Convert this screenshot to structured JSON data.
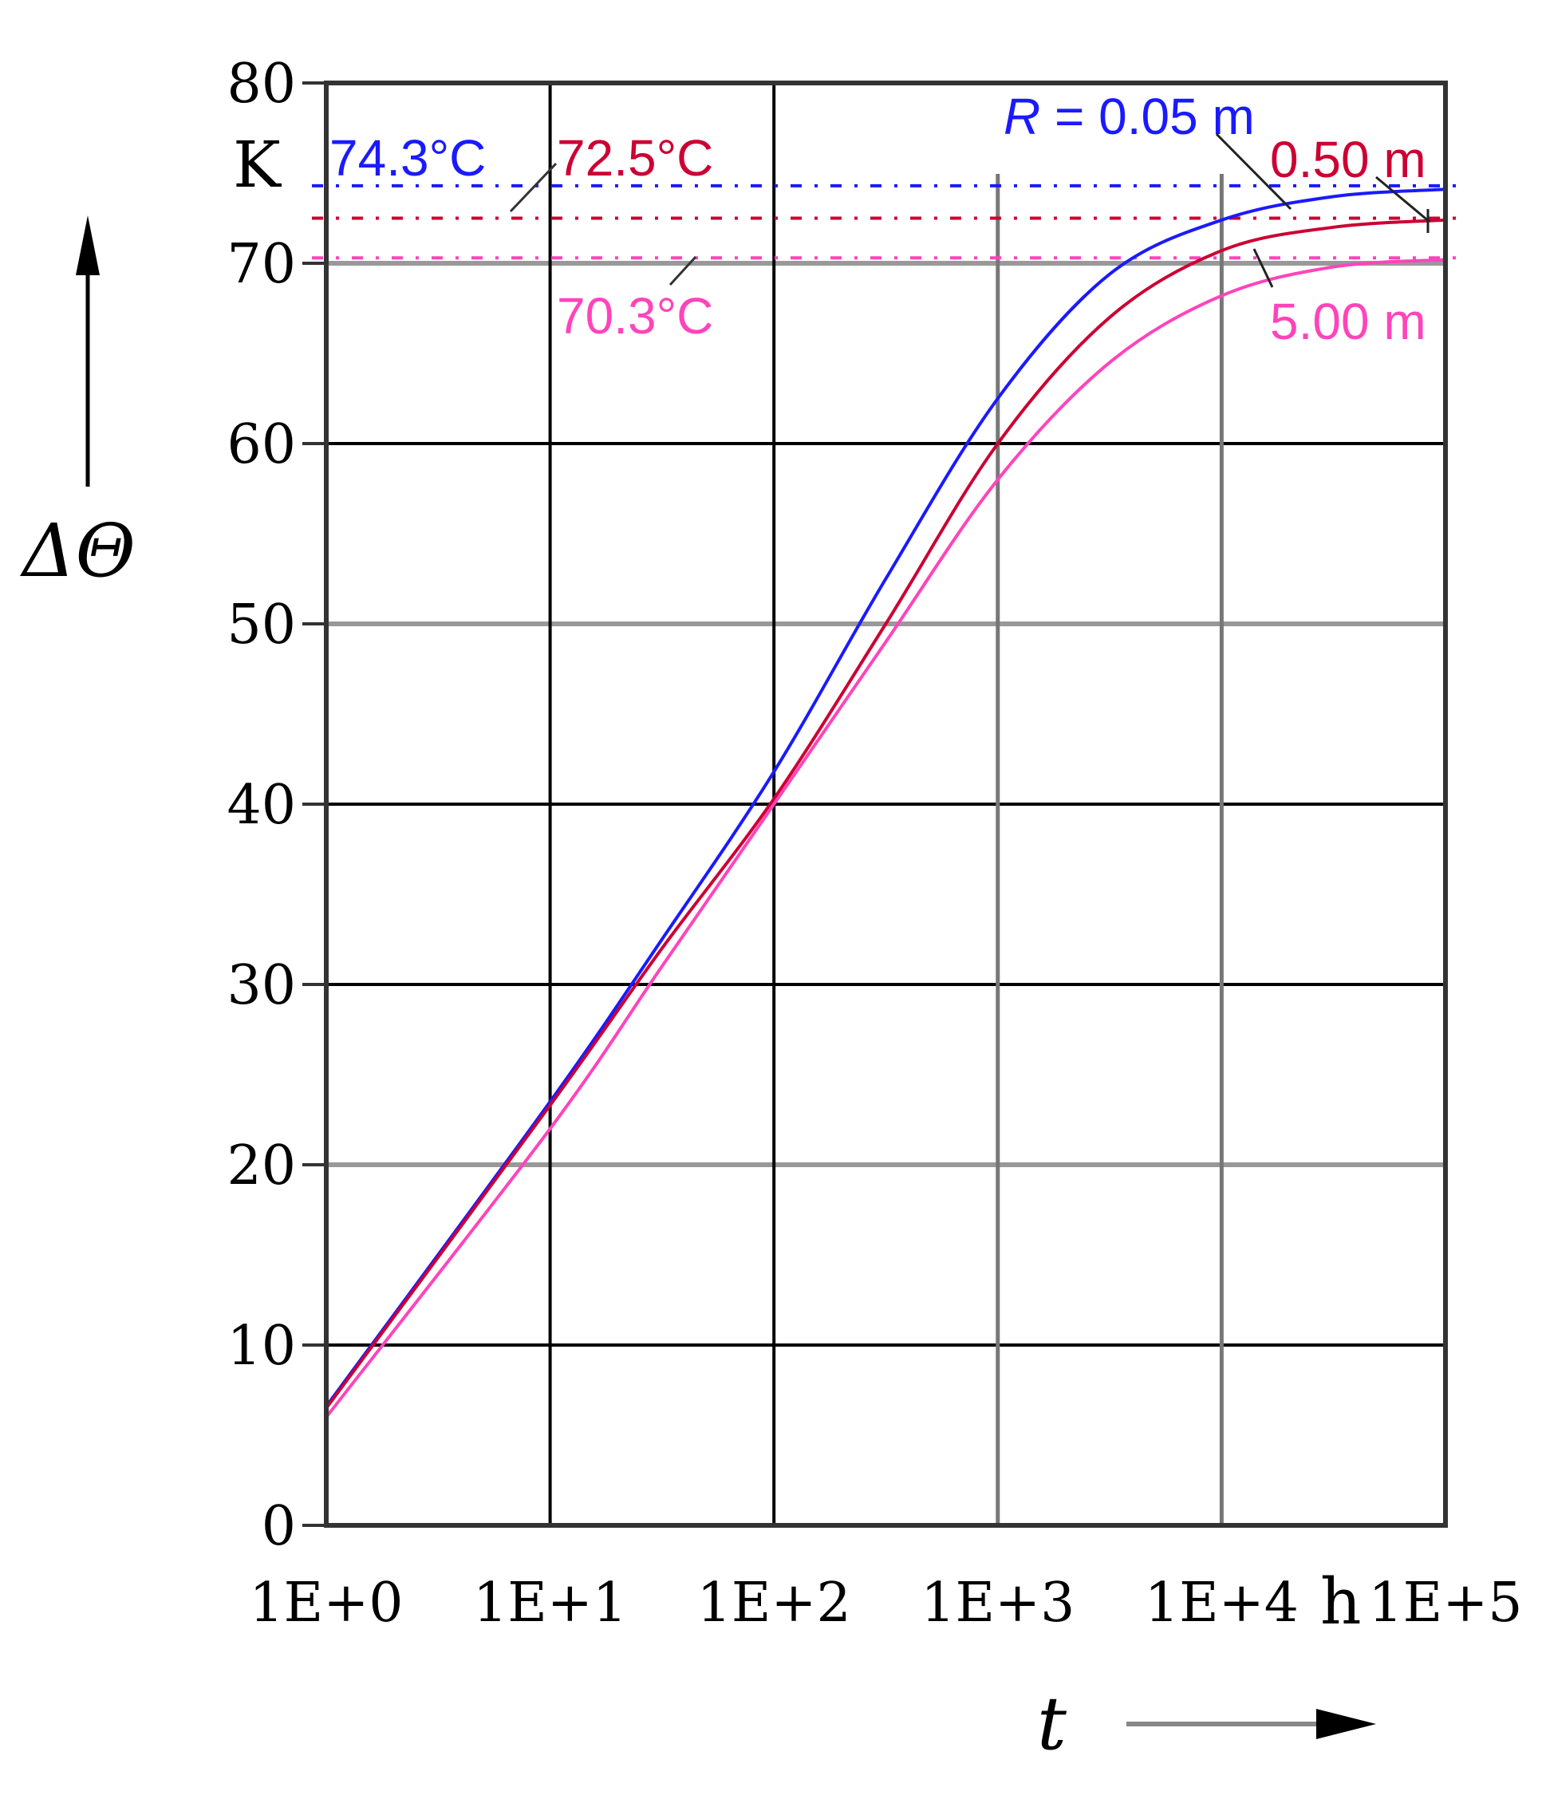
{
  "chart_data": {
    "type": "line",
    "x_scale": "log",
    "xlim": [
      1,
      100000
    ],
    "ylim": [
      0,
      80
    ],
    "grid": true,
    "y_ticks": [
      "0",
      "10",
      "20",
      "30",
      "40",
      "50",
      "60",
      "70",
      "80"
    ],
    "x_ticks": [
      "1E+0",
      "1E+1",
      "1E+2",
      "1E+3",
      "1E+4",
      "1E+5"
    ],
    "y_unit": "K",
    "x_unit": "h",
    "ylabel": "ΔΘ",
    "xlabel": "t",
    "series": [
      {
        "name": "R = 0.05 m",
        "color": "#1a1aff",
        "asymptote": 74.3,
        "asymptote_label": "74.3°C",
        "points": [
          [
            1,
            6.6
          ],
          [
            10,
            23.5
          ],
          [
            31.6,
            32.5
          ],
          [
            100,
            41.8
          ],
          [
            316,
            52.5
          ],
          [
            1000,
            62.5
          ],
          [
            3162,
            69.4
          ],
          [
            10000,
            72.4
          ],
          [
            31623,
            73.7
          ],
          [
            100000,
            74.1
          ]
        ]
      },
      {
        "name": "0.50 m",
        "color": "#cc0033",
        "asymptote": 72.5,
        "asymptote_label": "72.5°C",
        "points": [
          [
            1,
            6.5
          ],
          [
            10,
            23.3
          ],
          [
            31.6,
            32.0
          ],
          [
            100,
            40.3
          ],
          [
            316,
            50.0
          ],
          [
            1000,
            60.0
          ],
          [
            3162,
            67.0
          ],
          [
            10000,
            70.7
          ],
          [
            31623,
            72.0
          ],
          [
            100000,
            72.4
          ]
        ]
      },
      {
        "name": "5.00 m",
        "color": "#ff44bb",
        "asymptote": 70.3,
        "asymptote_label": "70.3°C",
        "points": [
          [
            1,
            6.0
          ],
          [
            10,
            22.0
          ],
          [
            31.6,
            31.0
          ],
          [
            100,
            40.0
          ],
          [
            316,
            49.0
          ],
          [
            1000,
            58.0
          ],
          [
            3162,
            64.5
          ],
          [
            10000,
            68.2
          ],
          [
            31623,
            69.8
          ],
          [
            100000,
            70.2
          ]
        ]
      }
    ],
    "legend_labels": [
      {
        "series": 0,
        "prefix": "R",
        "text": " = 0.05 m"
      },
      {
        "series": 1,
        "text": "0.50 m"
      },
      {
        "series": 2,
        "text": "5.00 m"
      }
    ]
  }
}
